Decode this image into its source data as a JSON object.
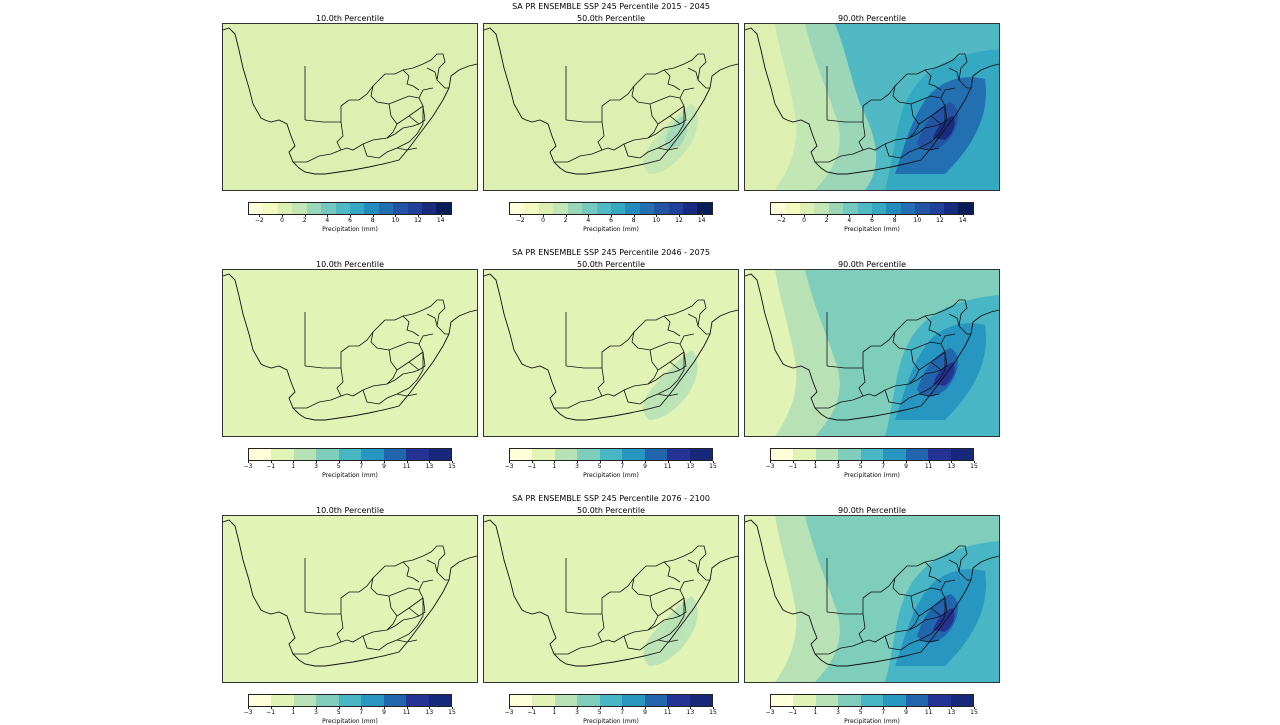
{
  "rows": [
    {
      "title": "SA PR ENSEMBLE SSP 245 Percentile 2015 - 2045",
      "panels": [
        {
          "title": "10.0th Percentile",
          "level": 0
        },
        {
          "title": "50.0th Percentile",
          "level": 1
        },
        {
          "title": "90.0th Percentile",
          "level": 2
        }
      ],
      "colorbar": {
        "label": "Precipitation (mm)",
        "ticks": [
          "−2",
          "0",
          "2",
          "4",
          "6",
          "8",
          "10",
          "12",
          "14"
        ],
        "tick_start": -2,
        "tick_step": 2,
        "vmin": -3,
        "vmax": 15,
        "colors": [
          "#ffffd9",
          "#f3fac0",
          "#ddf0b2",
          "#c2e6b4",
          "#9bd6b9",
          "#74c8bd",
          "#51b9c3",
          "#35a8c2",
          "#238cbc",
          "#2270b2",
          "#2354a4",
          "#20409a",
          "#172c7e",
          "#081d58"
        ]
      }
    },
    {
      "title": "SA PR ENSEMBLE SSP 245 Percentile 2046 - 2075",
      "panels": [
        {
          "title": "10.0th Percentile",
          "level": 0
        },
        {
          "title": "50.0th Percentile",
          "level": 1
        },
        {
          "title": "90.0th Percentile",
          "level": 2
        }
      ],
      "colorbar": {
        "label": "Precipitation (mm)",
        "ticks": [
          "−3",
          "−1",
          "1",
          "3",
          "5",
          "7",
          "9",
          "11",
          "13",
          "15"
        ],
        "tick_start": -3,
        "tick_step": 2,
        "vmin": -3,
        "vmax": 15,
        "colors": [
          "#ffffd9",
          "#e2f3b6",
          "#b8e2b6",
          "#7fcdbb",
          "#48b6c4",
          "#2797c1",
          "#2165ad",
          "#253494",
          "#16287a"
        ]
      }
    },
    {
      "title": "SA PR ENSEMBLE SSP 245 Percentile 2076 - 2100",
      "panels": [
        {
          "title": "10.0th Percentile",
          "level": 0
        },
        {
          "title": "50.0th Percentile",
          "level": 1
        },
        {
          "title": "90.0th Percentile",
          "level": 2
        }
      ],
      "colorbar": {
        "label": "Precipitation (mm)",
        "ticks": [
          "−3",
          "−1",
          "1",
          "3",
          "5",
          "7",
          "9",
          "11",
          "13",
          "15"
        ],
        "tick_start": -3,
        "tick_step": 2,
        "vmin": -3,
        "vmax": 15,
        "colors": [
          "#ffffd9",
          "#e2f3b6",
          "#b8e2b6",
          "#7fcdbb",
          "#48b6c4",
          "#2797c1",
          "#2165ad",
          "#253494",
          "#16287a"
        ]
      }
    }
  ]
}
